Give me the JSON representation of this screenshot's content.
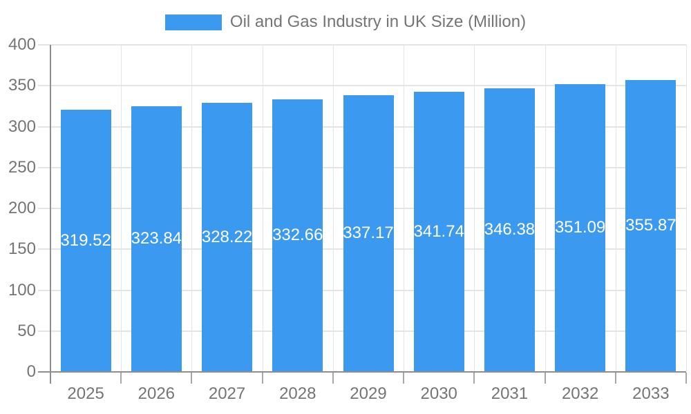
{
  "chart_data": {
    "type": "bar",
    "title": "Oil and Gas Industry in UK Size (Million)",
    "legend": {
      "label": "Oil and Gas Industry in UK Size (Million)",
      "position": "top"
    },
    "categories": [
      "2025",
      "2026",
      "2027",
      "2028",
      "2029",
      "2030",
      "2031",
      "2032",
      "2033"
    ],
    "series": [
      {
        "name": "Oil and Gas Industry in UK Size (Million)",
        "values": [
          319.52,
          323.84,
          328.22,
          332.66,
          337.17,
          341.74,
          346.38,
          351.09,
          355.87
        ]
      }
    ],
    "bar_value_labels": [
      "319.52",
      "323.84",
      "328.22",
      "332.66",
      "337.17",
      "341.74",
      "346.38",
      "351.09",
      "355.87"
    ],
    "xlabel": "",
    "ylabel": "",
    "ylim": [
      0,
      400
    ],
    "ytick_step": 50,
    "ytick_labels": [
      "0",
      "50",
      "100",
      "150",
      "200",
      "250",
      "300",
      "350",
      "400"
    ],
    "grid": true,
    "colors": {
      "bar": "#3C99F0",
      "bar_label_text": "#FFFFFF",
      "axis_text": "#757575",
      "legend_text": "#757575",
      "gridline": "#E4E4E4",
      "axis_line": "#8E8E8E",
      "tick": "#A8A8A8",
      "background": "#FFFFFF"
    }
  }
}
